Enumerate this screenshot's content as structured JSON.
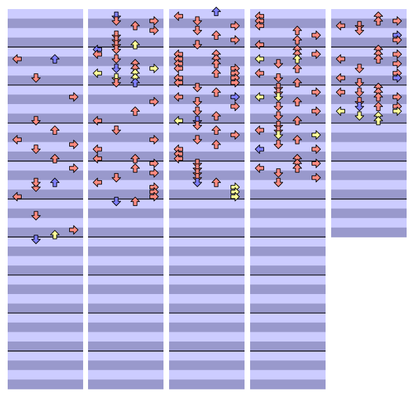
{
  "colors": {
    "band_light": "#CCCCFF",
    "band_dark": "#9999CC",
    "measure_line": "#000000",
    "arrow_red": "#FF8A80",
    "arrow_blue": "#7F7FFF",
    "arrow_yellow": "#FFFF99",
    "arrow_stroke": "#000000"
  },
  "icons": {
    "L": "left-arrow-icon",
    "D": "down-arrow-icon",
    "U": "up-arrow-icon",
    "R": "right-arrow-icon"
  },
  "sheet": {
    "columns": 5,
    "measures_per_column": [
      10,
      10,
      10,
      10,
      6
    ],
    "rows_per_measure": 8
  },
  "notes": [
    [
      [
        2,
        "L",
        "red"
      ],
      [
        2,
        "U",
        "blue"
      ],
      [
        6,
        "D",
        "red"
      ],
      [
        10,
        "R",
        "red"
      ],
      [
        15,
        "D",
        "red"
      ],
      [
        17,
        "U",
        "red"
      ],
      [
        19,
        "L",
        "red"
      ],
      [
        20,
        "R",
        "red"
      ],
      [
        21,
        "D",
        "red"
      ],
      [
        23,
        "U",
        "red"
      ],
      [
        25,
        "R",
        "red"
      ],
      [
        29,
        "D",
        "red"
      ],
      [
        28,
        "U",
        "blue"
      ],
      [
        28,
        "D",
        "red"
      ],
      [
        31,
        "L",
        "red"
      ],
      [
        35,
        "D",
        "red"
      ],
      [
        38,
        "R",
        "red"
      ],
      [
        39,
        "U",
        "yellow"
      ],
      [
        40,
        "D",
        "blue"
      ]
    ],
    [
      [
        -7,
        "D",
        "blue"
      ],
      [
        -6,
        "R",
        "red"
      ],
      [
        -6,
        "D",
        "red"
      ],
      [
        -5,
        "U",
        "red"
      ],
      [
        -4,
        "R",
        "red"
      ],
      [
        -3,
        "D",
        "red"
      ],
      [
        -2,
        "D",
        "red"
      ],
      [
        -1,
        "D",
        "red"
      ],
      [
        -1,
        "U",
        "yellow"
      ],
      [
        0,
        "L",
        "blue"
      ],
      [
        0,
        "D",
        "red"
      ],
      [
        1,
        "L",
        "red"
      ],
      [
        2,
        "D",
        "red"
      ],
      [
        3,
        "U",
        "red"
      ],
      [
        4,
        "U",
        "red"
      ],
      [
        4,
        "D",
        "blue"
      ],
      [
        4,
        "R",
        "yellow"
      ],
      [
        5,
        "L",
        "yellow"
      ],
      [
        5,
        "U",
        "yellow"
      ],
      [
        6,
        "D",
        "yellow"
      ],
      [
        6,
        "U",
        "yellow"
      ],
      [
        7,
        "D",
        "red"
      ],
      [
        7,
        "U",
        "blue"
      ],
      [
        11,
        "R",
        "red"
      ],
      [
        13,
        "U",
        "red"
      ],
      [
        15,
        "L",
        "red"
      ],
      [
        17,
        "D",
        "red"
      ],
      [
        19,
        "R",
        "red"
      ],
      [
        21,
        "L",
        "red"
      ],
      [
        23,
        "L",
        "red"
      ],
      [
        23,
        "U",
        "red"
      ],
      [
        24,
        "R",
        "red"
      ],
      [
        25,
        "U",
        "red"
      ],
      [
        26,
        "R",
        "red"
      ],
      [
        27,
        "D",
        "red"
      ],
      [
        28,
        "L",
        "red"
      ],
      [
        29,
        "R",
        "red"
      ],
      [
        30,
        "R",
        "red"
      ],
      [
        31,
        "R",
        "red"
      ],
      [
        32,
        "U",
        "red"
      ],
      [
        32,
        "D",
        "blue"
      ]
    ],
    [
      [
        -8,
        "U",
        "blue"
      ],
      [
        -7,
        "L",
        "red"
      ],
      [
        -6,
        "D",
        "red"
      ],
      [
        -5,
        "R",
        "red"
      ],
      [
        -4,
        "D",
        "red"
      ],
      [
        -3,
        "U",
        "red"
      ],
      [
        -2,
        "R",
        "red"
      ],
      [
        -1,
        "D",
        "red"
      ],
      [
        1,
        "L",
        "red"
      ],
      [
        1,
        "U",
        "red"
      ],
      [
        2,
        "L",
        "red"
      ],
      [
        2,
        "U",
        "red"
      ],
      [
        3,
        "L",
        "red"
      ],
      [
        3,
        "U",
        "red"
      ],
      [
        4,
        "R",
        "red"
      ],
      [
        4,
        "L",
        "red"
      ],
      [
        5,
        "R",
        "red"
      ],
      [
        5,
        "U",
        "red"
      ],
      [
        6,
        "R",
        "red"
      ],
      [
        6,
        "L",
        "red"
      ],
      [
        7,
        "R",
        "red"
      ],
      [
        7,
        "L",
        "red"
      ],
      [
        8,
        "D",
        "red"
      ],
      [
        9,
        "U",
        "red"
      ],
      [
        10,
        "L",
        "red"
      ],
      [
        10,
        "R",
        "blue"
      ],
      [
        11,
        "D",
        "red"
      ],
      [
        12,
        "R",
        "red"
      ],
      [
        13,
        "D",
        "red"
      ],
      [
        14,
        "U",
        "red"
      ],
      [
        15,
        "L",
        "yellow"
      ],
      [
        15,
        "D",
        "blue"
      ],
      [
        16,
        "D",
        "red"
      ],
      [
        17,
        "U",
        "red"
      ],
      [
        18,
        "R",
        "red"
      ],
      [
        19,
        "D",
        "red"
      ],
      [
        20,
        "U",
        "red"
      ],
      [
        21,
        "L",
        "red"
      ],
      [
        22,
        "L",
        "red"
      ],
      [
        23,
        "L",
        "red"
      ],
      [
        24,
        "D",
        "red"
      ],
      [
        25,
        "D",
        "red"
      ],
      [
        26,
        "D",
        "red"
      ],
      [
        27,
        "D",
        "red"
      ],
      [
        28,
        "U",
        "red"
      ],
      [
        28,
        "D",
        "blue"
      ],
      [
        29,
        "R",
        "yellow"
      ],
      [
        30,
        "R",
        "yellow"
      ],
      [
        31,
        "R",
        "yellow"
      ]
    ],
    [
      [
        -7,
        "L",
        "red"
      ],
      [
        -6,
        "L",
        "red"
      ],
      [
        -5,
        "L",
        "red"
      ],
      [
        -4,
        "U",
        "red"
      ],
      [
        -3,
        "R",
        "red"
      ],
      [
        -2,
        "U",
        "red"
      ],
      [
        -1,
        "L",
        "red"
      ],
      [
        0,
        "U",
        "red"
      ],
      [
        1,
        "U",
        "red"
      ],
      [
        1,
        "R",
        "red"
      ],
      [
        2,
        "L",
        "yellow"
      ],
      [
        2,
        "U",
        "yellow"
      ],
      [
        3,
        "D",
        "red"
      ],
      [
        4,
        "U",
        "red"
      ],
      [
        5,
        "L",
        "red"
      ],
      [
        6,
        "D",
        "red"
      ],
      [
        7,
        "U",
        "red"
      ],
      [
        8,
        "D",
        "red"
      ],
      [
        9,
        "R",
        "red"
      ],
      [
        9,
        "D",
        "red"
      ],
      [
        10,
        "L",
        "yellow"
      ],
      [
        10,
        "D",
        "yellow"
      ],
      [
        11,
        "U",
        "red"
      ],
      [
        12,
        "D",
        "red"
      ],
      [
        13,
        "R",
        "red"
      ],
      [
        14,
        "D",
        "red"
      ],
      [
        15,
        "U",
        "red"
      ],
      [
        16,
        "D",
        "red"
      ],
      [
        17,
        "L",
        "red"
      ],
      [
        17,
        "D",
        "red"
      ],
      [
        18,
        "D",
        "yellow"
      ],
      [
        18,
        "R",
        "yellow"
      ],
      [
        19,
        "U",
        "red"
      ],
      [
        20,
        "D",
        "red"
      ],
      [
        21,
        "R",
        "red"
      ],
      [
        21,
        "L",
        "blue"
      ],
      [
        23,
        "U",
        "red"
      ],
      [
        24,
        "U",
        "red"
      ],
      [
        24,
        "R",
        "red"
      ],
      [
        25,
        "L",
        "red"
      ],
      [
        25,
        "U",
        "red"
      ],
      [
        26,
        "D",
        "red"
      ],
      [
        27,
        "R",
        "red"
      ],
      [
        28,
        "D",
        "red"
      ]
    ],
    [
      [
        -7,
        "U",
        "red"
      ],
      [
        -6,
        "R",
        "red"
      ],
      [
        -6,
        "U",
        "red"
      ],
      [
        -5,
        "L",
        "red"
      ],
      [
        -5,
        "D",
        "red"
      ],
      [
        -4,
        "D",
        "red"
      ],
      [
        -3,
        "R",
        "blue"
      ],
      [
        -2,
        "R",
        "red"
      ],
      [
        0,
        "U",
        "red"
      ],
      [
        1,
        "R",
        "red"
      ],
      [
        1,
        "U",
        "red"
      ],
      [
        2,
        "L",
        "red"
      ],
      [
        2,
        "U",
        "red"
      ],
      [
        3,
        "R",
        "red"
      ],
      [
        4,
        "D",
        "red"
      ],
      [
        5,
        "R",
        "red"
      ],
      [
        6,
        "L",
        "red"
      ],
      [
        6,
        "R",
        "blue"
      ],
      [
        7,
        "D",
        "red"
      ],
      [
        8,
        "U",
        "red"
      ],
      [
        9,
        "D",
        "red"
      ],
      [
        9,
        "L",
        "red"
      ],
      [
        9,
        "U",
        "red"
      ],
      [
        10,
        "R",
        "red"
      ],
      [
        10,
        "U",
        "red"
      ],
      [
        11,
        "D",
        "red"
      ],
      [
        12,
        "R",
        "red"
      ],
      [
        12,
        "U",
        "red"
      ],
      [
        12,
        "D",
        "blue"
      ],
      [
        13,
        "R",
        "yellow"
      ],
      [
        13,
        "L",
        "yellow"
      ],
      [
        14,
        "D",
        "yellow"
      ],
      [
        14,
        "U",
        "yellow"
      ],
      [
        15,
        "U",
        "yellow"
      ]
    ]
  ]
}
